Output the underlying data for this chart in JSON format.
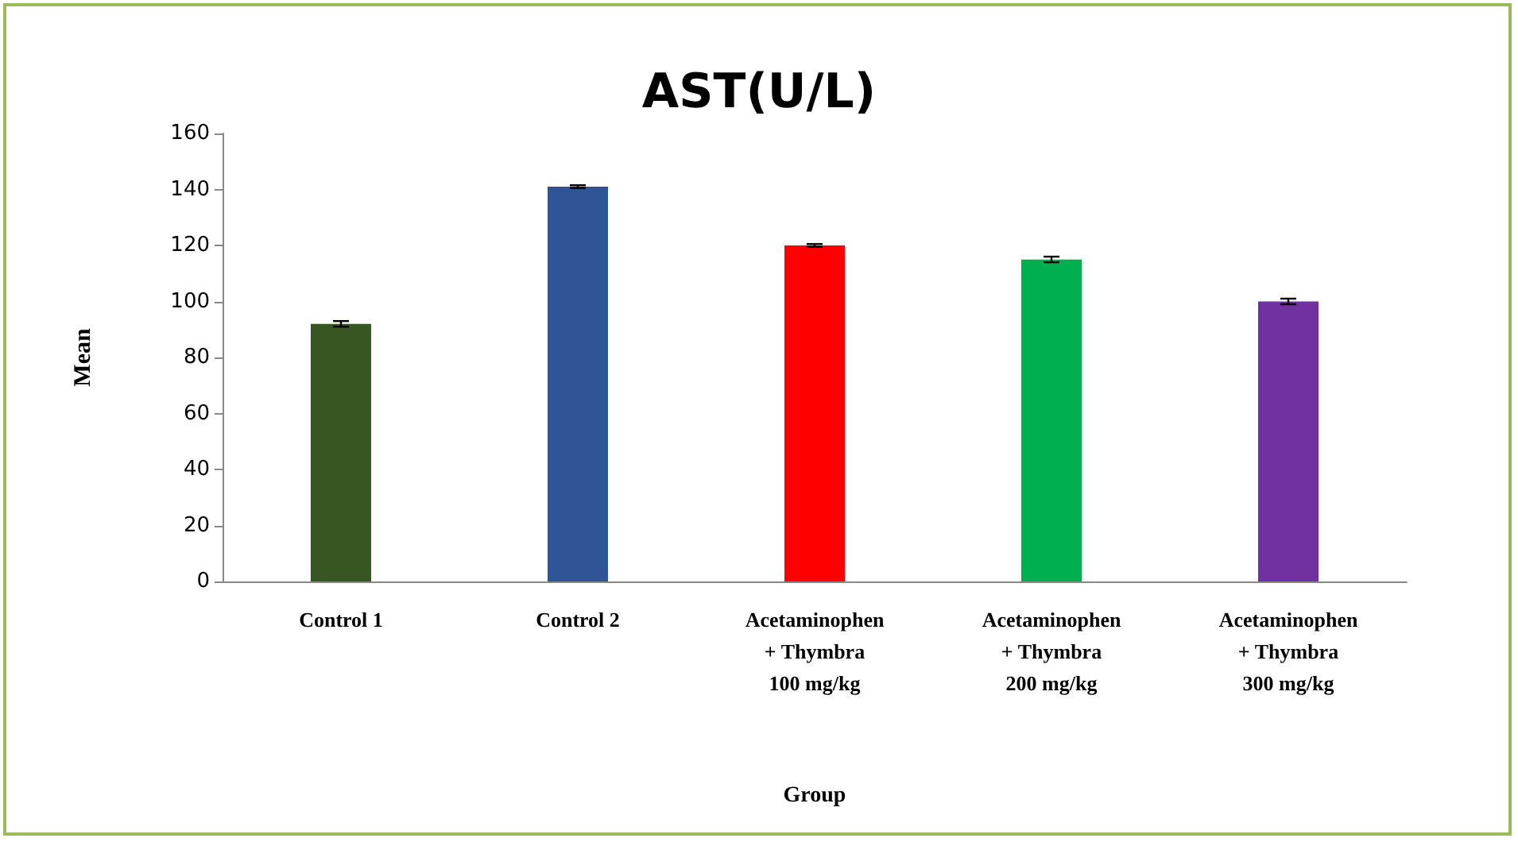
{
  "chart_data": {
    "type": "bar",
    "title": "AST(U/L)",
    "xlabel": "Group",
    "ylabel": "Mean",
    "categories": [
      "Control 1",
      "Control 2",
      "Acetaminophen\n+ Thymbra\n100 mg/kg",
      "Acetaminophen\n+ Thymbra\n200 mg/kg",
      "Acetaminophen\n+ Thymbra\n300 mg/kg"
    ],
    "values": [
      92,
      141,
      120,
      115,
      100
    ],
    "colors": [
      "#375623",
      "#2f5597",
      "#ff0000",
      "#00b050",
      "#7030a0"
    ],
    "errors": [
      1,
      0.5,
      0.5,
      1,
      1
    ],
    "ylim": [
      0,
      160
    ],
    "yticks": [
      0,
      20,
      40,
      60,
      80,
      100,
      120,
      140,
      160
    ],
    "grid": false
  }
}
